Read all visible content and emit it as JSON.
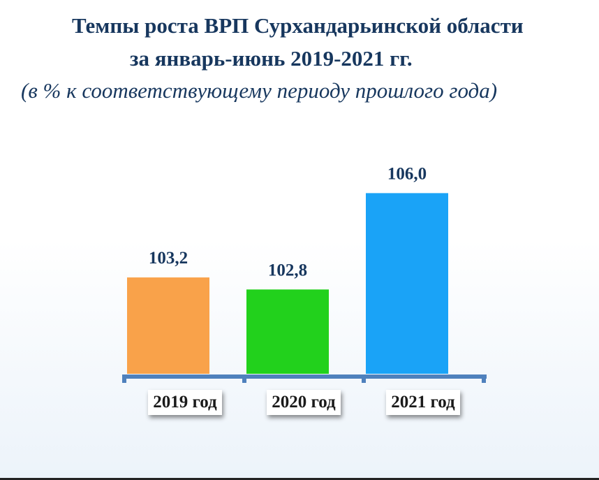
{
  "chart_data": {
    "type": "bar",
    "title": "Темпы роста ВРП Сурхандарьинской области",
    "title_line2": "за январь-июнь 2019-2021 гг.",
    "subtitle": "(в % к соответствующему периоду прошлого года)",
    "categories": [
      "2019 год",
      "2020 год",
      "2021 год"
    ],
    "values": [
      103.2,
      102.8,
      106.0
    ],
    "value_labels": [
      "103,2",
      "102,8",
      "106,0"
    ],
    "colors": [
      "#f9a24a",
      "#22d11c",
      "#1aa3f7"
    ],
    "axis_color": "#4f81bd",
    "text_color": "#17375e",
    "grid": false,
    "legend": "none"
  }
}
